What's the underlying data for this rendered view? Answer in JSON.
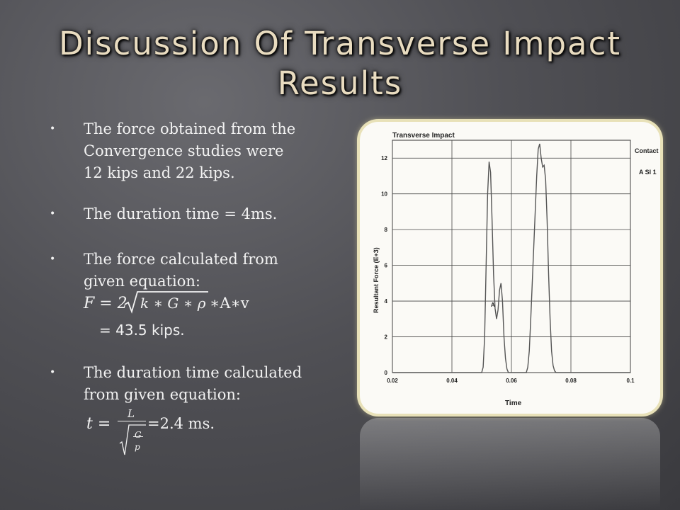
{
  "slide": {
    "title_line1": "Discussion Of Transverse Impact",
    "title_line2": "Results",
    "bullets": {
      "b1": [
        "The force obtained from the",
        "Convergence studies were",
        "12 kips and 22  kips."
      ],
      "b2": "The duration time = 4ms.",
      "b3": [
        "The force calculated from",
        "given equation:"
      ],
      "b3_result": "= 43.5 kips.",
      "b4": [
        "The duration time  calculated",
        "from given equation:"
      ],
      "b4_result": "=2.4 ms."
    },
    "equations": {
      "force_prefix": "F = 2",
      "force_radicand": "k ∗ G ∗ ρ",
      "force_suffix": "∗A∗v",
      "time_lhs": "t =",
      "time_numerator": "L",
      "time_denominator_num": "G",
      "time_denominator_den": "p"
    }
  },
  "chart_data": {
    "type": "line",
    "title": "Transverse Impact",
    "xlabel": "Time",
    "ylabel": "Resultant Force (E+3)",
    "xlim": [
      0.02,
      0.1
    ],
    "ylim": [
      0,
      13
    ],
    "x_ticks": [
      "0.02",
      "0.04",
      "0.06",
      "0.08",
      "0.1"
    ],
    "y_ticks": [
      "0",
      "2",
      "4",
      "6",
      "8",
      "10",
      "12"
    ],
    "legend_title": "Contact Id",
    "legend_entry": "A  Sl 1",
    "annotation": "A",
    "grid": true,
    "series": [
      {
        "x": [
          0.02,
          0.05,
          0.0505,
          0.051,
          0.0515,
          0.052,
          0.0525,
          0.053,
          0.0535,
          0.054,
          0.0545,
          0.055,
          0.0555,
          0.056,
          0.0565,
          0.057,
          0.0575,
          0.058,
          0.0585,
          0.059,
          0.0595,
          0.06,
          0.065,
          0.0655,
          0.066,
          0.0665,
          0.067,
          0.0675,
          0.068,
          0.0685,
          0.069,
          0.0695,
          0.07,
          0.0705,
          0.071,
          0.0715,
          0.072,
          0.0725,
          0.073,
          0.0735,
          0.074,
          0.0745,
          0.075,
          0.076,
          0.1
        ],
        "y": [
          0,
          0,
          0.3,
          2,
          6,
          10,
          11.8,
          11.2,
          8.5,
          5.5,
          3.6,
          3,
          3.5,
          4.6,
          5,
          4,
          2,
          0.8,
          0.2,
          0,
          0,
          0,
          0,
          0.3,
          1.2,
          3,
          5,
          7,
          9,
          11,
          12.5,
          12.8,
          12,
          11.5,
          11.6,
          10.8,
          8.5,
          5.5,
          3,
          1.2,
          0.4,
          0.1,
          0,
          0,
          0
        ]
      }
    ]
  }
}
